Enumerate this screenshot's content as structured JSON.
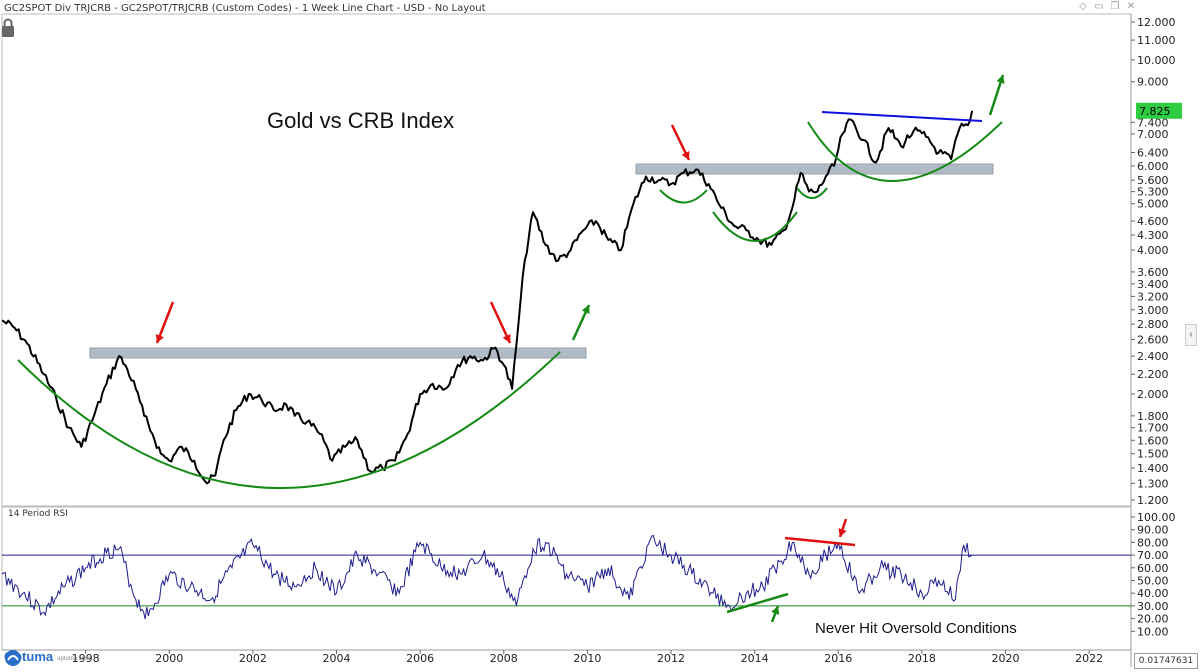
{
  "window": {
    "title": "GC2SPOT Div TRJCRB - GC2SPOT/TRJCRB (Custom Codes) - 1 Week Line Chart - USD - No Layout",
    "icons": [
      "diamond-icon",
      "minimize-icon",
      "restore-icon",
      "close-icon"
    ]
  },
  "status": {
    "readout": "0.01747631"
  },
  "logo": {
    "name": "Optuma",
    "url": "optuma.com"
  },
  "colors": {
    "price_line": "#000000",
    "rsi_line": "#1f1f8f",
    "support_band": "#a9b4bf",
    "green_annotation": "#168a16",
    "red_annotation": "#e01010",
    "blue_trendline": "#1010e0",
    "last_price_badge": "#2ecc40"
  },
  "annotations": {
    "title": "Gold vs CRB Index",
    "rsi_note": "Never Hit Oversold Conditions",
    "last_price": "7.825"
  },
  "chart_data": [
    {
      "type": "line",
      "title": "Gold vs CRB Index",
      "scale": "log",
      "ylim": [
        1.2,
        12.0
      ],
      "xlim": [
        1996,
        2023
      ],
      "yticks": [
        "1.200",
        "1.300",
        "1.400",
        "1.500",
        "1.600",
        "1.700",
        "1.800",
        "2.000",
        "2.200",
        "2.400",
        "2.600",
        "2.800",
        "3.000",
        "3.200",
        "3.400",
        "3.600",
        "4.000",
        "4.300",
        "4.600",
        "5.000",
        "5.300",
        "5.600",
        "6.000",
        "6.400",
        "7.000",
        "7.400",
        "9.000",
        "10.000",
        "11.000",
        "12.000"
      ],
      "xticks": [
        "1998",
        "2000",
        "2002",
        "2004",
        "2006",
        "2008",
        "2010",
        "2012",
        "2014",
        "2016",
        "2018",
        "2020",
        "2022"
      ],
      "series": [
        {
          "x": [
            1996.0,
            1996.3,
            1996.6,
            1997.0,
            1997.3,
            1997.6,
            1997.9,
            1998.2,
            1998.5,
            1998.8,
            1999.0,
            1999.2,
            1999.4,
            1999.6,
            1999.8,
            2000.0,
            2000.3,
            2000.6,
            2000.9,
            2001.1,
            2001.3,
            2001.6,
            2001.9,
            2002.2,
            2002.5,
            2002.8,
            2003.0,
            2003.3,
            2003.6,
            2003.9,
            2004.2,
            2004.5,
            2004.8,
            2005.1,
            2005.4,
            2005.7,
            2006.0,
            2006.3,
            2006.6,
            2006.9,
            2007.2,
            2007.5,
            2007.8,
            2008.0,
            2008.2,
            2008.35,
            2008.5,
            2008.7,
            2009.0,
            2009.3,
            2009.6,
            2009.9,
            2010.2,
            2010.5,
            2010.8,
            2011.1,
            2011.4,
            2011.7,
            2012.0,
            2012.3,
            2012.6,
            2012.9,
            2013.2,
            2013.5,
            2013.8,
            2014.1,
            2014.4,
            2014.7,
            2014.9,
            2015.1,
            2015.3,
            2015.5,
            2015.7,
            2015.9,
            2016.1,
            2016.3,
            2016.6,
            2016.9,
            2017.2,
            2017.5,
            2017.8,
            2018.1,
            2018.4,
            2018.7,
            2018.9,
            2019.1,
            2019.2
          ],
          "y": [
            2.85,
            2.75,
            2.55,
            2.2,
            1.95,
            1.7,
            1.55,
            1.8,
            2.1,
            2.4,
            2.25,
            2.05,
            1.8,
            1.65,
            1.5,
            1.45,
            1.55,
            1.45,
            1.3,
            1.35,
            1.6,
            1.85,
            2.0,
            1.95,
            1.85,
            1.9,
            1.8,
            1.75,
            1.65,
            1.45,
            1.55,
            1.6,
            1.38,
            1.4,
            1.45,
            1.65,
            2.0,
            2.1,
            2.05,
            2.3,
            2.4,
            2.35,
            2.5,
            2.3,
            2.05,
            2.8,
            3.8,
            4.8,
            4.1,
            3.8,
            4.0,
            4.4,
            4.6,
            4.2,
            4.0,
            5.0,
            5.7,
            5.6,
            5.5,
            5.8,
            5.9,
            5.5,
            4.9,
            4.5,
            4.4,
            4.2,
            4.1,
            4.4,
            4.9,
            5.8,
            5.3,
            5.3,
            5.7,
            6.0,
            7.0,
            7.5,
            6.8,
            6.1,
            7.2,
            6.6,
            7.1,
            6.9,
            6.4,
            6.2,
            7.2,
            7.3,
            7.825
          ]
        }
      ]
    },
    {
      "type": "line",
      "title": "14 Period RSI",
      "ylim": [
        0,
        100
      ],
      "yticks": [
        "10.00",
        "20.00",
        "30.00",
        "40.00",
        "50.00",
        "60.00",
        "70.00",
        "80.00",
        "90.00",
        "100.00"
      ],
      "reference_lines": [
        30,
        70
      ],
      "series": [
        {
          "x": [
            1996.0,
            1996.5,
            1997.0,
            1997.5,
            1998.0,
            1998.5,
            1998.8,
            1999.2,
            1999.5,
            2000.0,
            2000.5,
            2001.0,
            2001.5,
            2002.0,
            2002.5,
            2003.0,
            2003.5,
            2004.0,
            2004.5,
            2005.0,
            2005.5,
            2006.0,
            2006.5,
            2007.0,
            2007.5,
            2008.0,
            2008.3,
            2008.7,
            2009.0,
            2009.5,
            2010.0,
            2010.5,
            2011.0,
            2011.5,
            2012.0,
            2012.5,
            2013.0,
            2013.4,
            2013.8,
            2014.2,
            2014.6,
            2014.9,
            2015.3,
            2015.7,
            2016.0,
            2016.5,
            2017.0,
            2017.5,
            2018.0,
            2018.4,
            2018.8,
            2019.0,
            2019.2
          ],
          "y": [
            55,
            40,
            25,
            45,
            60,
            72,
            75,
            35,
            22,
            55,
            45,
            35,
            60,
            78,
            55,
            45,
            60,
            40,
            70,
            55,
            40,
            80,
            60,
            55,
            70,
            50,
            30,
            75,
            80,
            55,
            45,
            60,
            35,
            82,
            70,
            55,
            40,
            30,
            40,
            45,
            65,
            80,
            55,
            70,
            80,
            40,
            60,
            55,
            40,
            50,
            35,
            78,
            70
          ]
        }
      ]
    }
  ]
}
